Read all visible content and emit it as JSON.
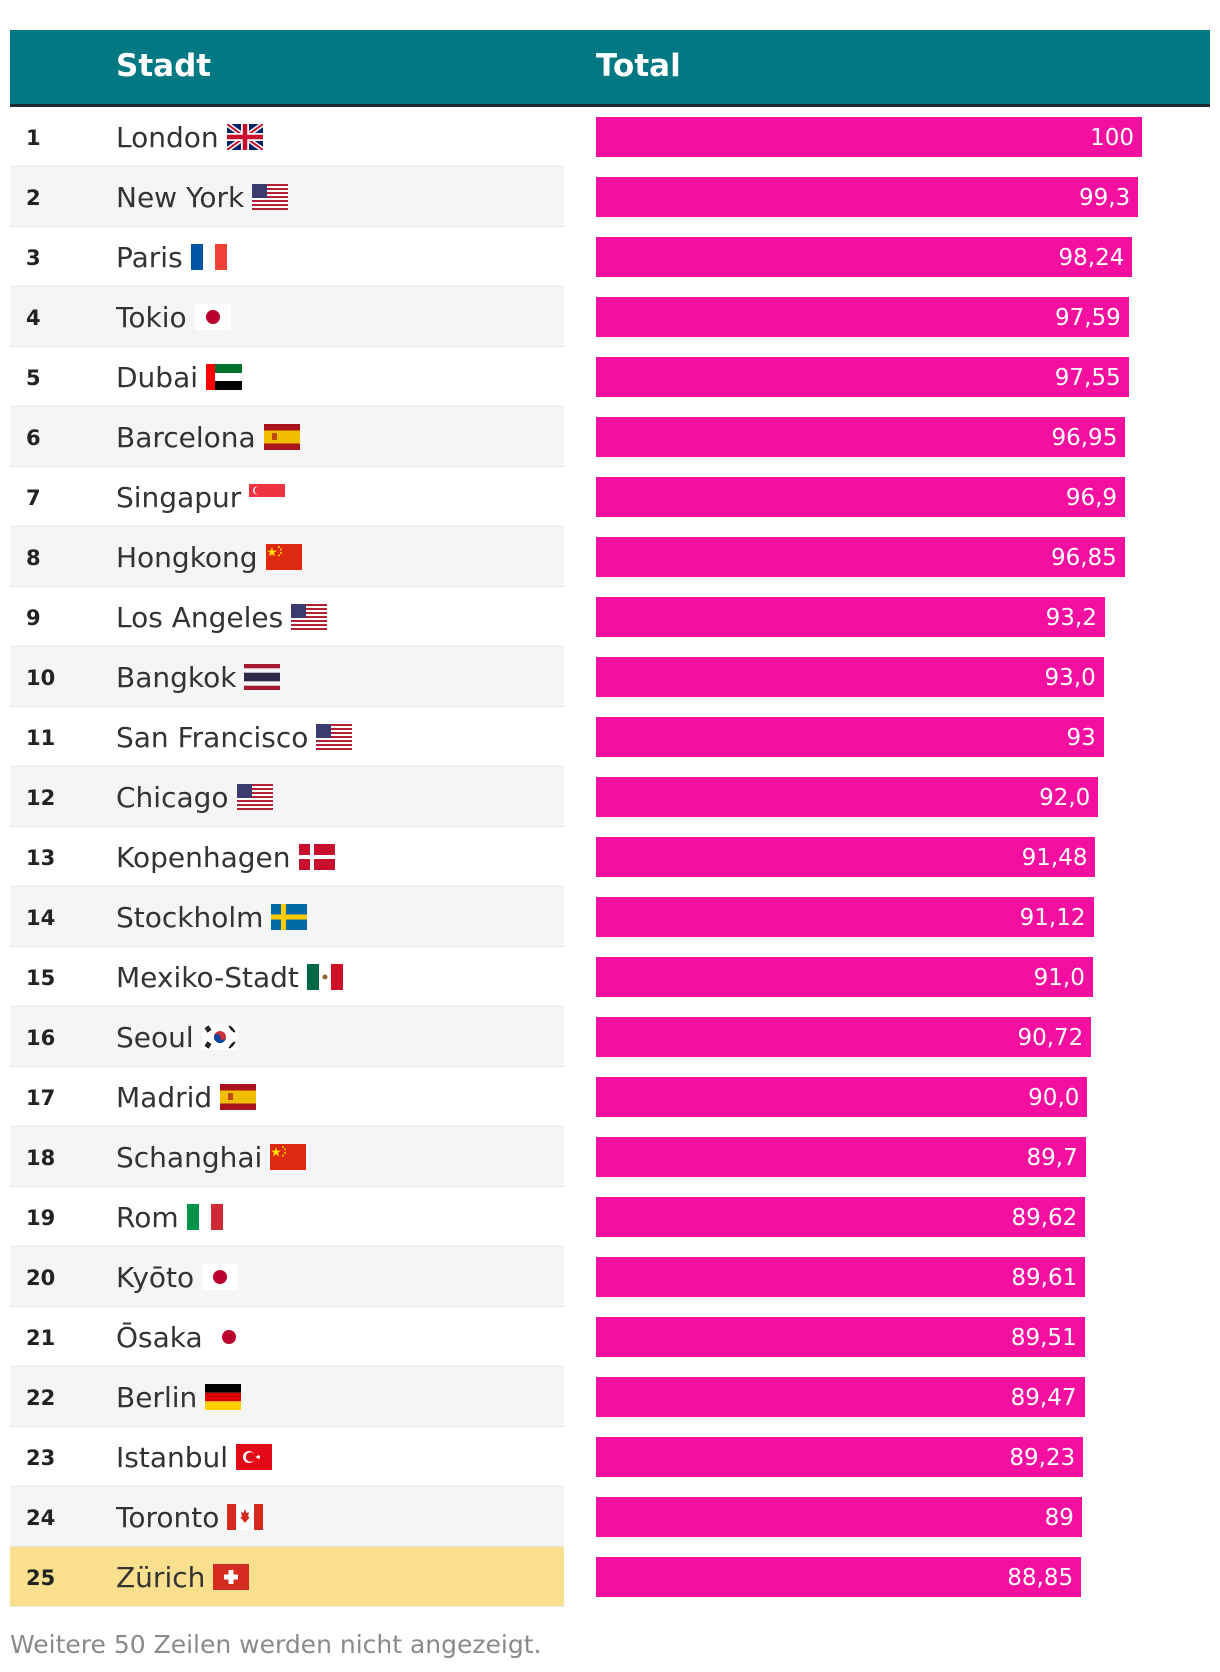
{
  "header": {
    "city": "Stadt",
    "total": "Total"
  },
  "footnote": "Weitere 50 Zeilen werden nicht angezeigt.",
  "colors": {
    "header": "#027882",
    "bar": "#f50fa0",
    "highlight": "#fae08e"
  },
  "chart_data": {
    "type": "bar",
    "orientation": "horizontal",
    "xlim": [
      0,
      100
    ],
    "columns": [
      "Stadt",
      "Total"
    ],
    "rows": [
      {
        "rank": "1",
        "city": "London",
        "flag": "gb",
        "label": "100",
        "value": 100
      },
      {
        "rank": "2",
        "city": "New York",
        "flag": "us",
        "label": "99,3",
        "value": 99.3
      },
      {
        "rank": "3",
        "city": "Paris",
        "flag": "fr",
        "label": "98,24",
        "value": 98.24
      },
      {
        "rank": "4",
        "city": "Tokio",
        "flag": "jp",
        "label": "97,59",
        "value": 97.59
      },
      {
        "rank": "5",
        "city": "Dubai",
        "flag": "ae",
        "label": "97,55",
        "value": 97.55
      },
      {
        "rank": "6",
        "city": "Barcelona",
        "flag": "es",
        "label": "96,95",
        "value": 96.95
      },
      {
        "rank": "7",
        "city": "Singapur",
        "flag": "sg",
        "label": "96,9",
        "value": 96.9
      },
      {
        "rank": "8",
        "city": "Hongkong",
        "flag": "cn",
        "label": "96,85",
        "value": 96.85
      },
      {
        "rank": "9",
        "city": "Los Angeles",
        "flag": "us",
        "label": "93,2",
        "value": 93.2
      },
      {
        "rank": "10",
        "city": "Bangkok",
        "flag": "th",
        "label": "93,0",
        "value": 93.0
      },
      {
        "rank": "11",
        "city": "San Francisco",
        "flag": "us",
        "label": "93",
        "value": 93
      },
      {
        "rank": "12",
        "city": "Chicago",
        "flag": "us",
        "label": "92,0",
        "value": 92.0
      },
      {
        "rank": "13",
        "city": "Kopenhagen",
        "flag": "dk",
        "label": "91,48",
        "value": 91.48
      },
      {
        "rank": "14",
        "city": "Stockholm",
        "flag": "se",
        "label": "91,12",
        "value": 91.12
      },
      {
        "rank": "15",
        "city": "Mexiko-Stadt",
        "flag": "mx",
        "label": "91,0",
        "value": 91.0
      },
      {
        "rank": "16",
        "city": "Seoul",
        "flag": "kr",
        "label": "90,72",
        "value": 90.72
      },
      {
        "rank": "17",
        "city": "Madrid",
        "flag": "es",
        "label": "90,0",
        "value": 90.0
      },
      {
        "rank": "18",
        "city": "Schanghai",
        "flag": "cn",
        "label": "89,7",
        "value": 89.7
      },
      {
        "rank": "19",
        "city": "Rom",
        "flag": "it",
        "label": "89,62",
        "value": 89.62
      },
      {
        "rank": "20",
        "city": "Kyōto",
        "flag": "jp",
        "label": "89,61",
        "value": 89.61
      },
      {
        "rank": "21",
        "city": "Ōsaka",
        "flag": "jp",
        "label": "89,51",
        "value": 89.51
      },
      {
        "rank": "22",
        "city": "Berlin",
        "flag": "de",
        "label": "89,47",
        "value": 89.47
      },
      {
        "rank": "23",
        "city": "Istanbul",
        "flag": "tr",
        "label": "89,23",
        "value": 89.23
      },
      {
        "rank": "24",
        "city": "Toronto",
        "flag": "ca",
        "label": "89",
        "value": 89
      },
      {
        "rank": "25",
        "city": "Zürich",
        "flag": "ch",
        "label": "88,85",
        "value": 88.85,
        "highlight": true
      }
    ]
  }
}
